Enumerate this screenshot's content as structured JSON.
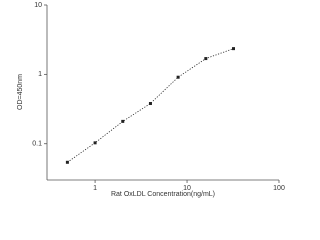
{
  "chart_data": {
    "type": "scatter",
    "log_x": true,
    "log_y": true,
    "x_label": "Rat OxLDL Concentration(ng/mL)",
    "y_label": "OD=450nm",
    "x": [
      0.5,
      1,
      2,
      4,
      8,
      16,
      32
    ],
    "series": [
      {
        "color": "#222222",
        "values": [
          0.054,
          0.103,
          0.21,
          0.38,
          0.91,
          1.69,
          2.35
        ]
      }
    ],
    "xlim": [
      0.3,
      100
    ],
    "ylim": [
      0.03,
      10
    ],
    "xticks": [
      1,
      10,
      100
    ],
    "yticks": [
      {
        "value": 0.1,
        "label": "0.1"
      },
      1,
      10
    ],
    "line": "dotted"
  }
}
